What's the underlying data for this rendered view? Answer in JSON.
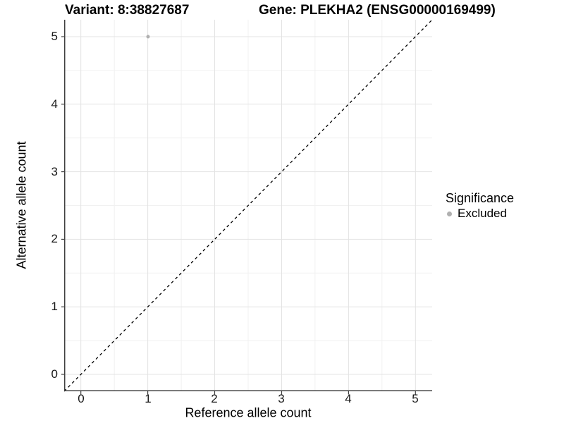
{
  "figure": {
    "title_left": "Variant: 8:38827687",
    "title_right": "Gene: PLEKHA2 (ENSG00000169499)"
  },
  "axes": {
    "x": {
      "label": "Reference allele count",
      "ticks": [
        "0",
        "1",
        "2",
        "3",
        "4",
        "5"
      ]
    },
    "y": {
      "label": "Alternative allele count",
      "ticks": [
        "0",
        "1",
        "2",
        "3",
        "4",
        "5"
      ]
    }
  },
  "legend": {
    "title": "Significance",
    "items": [
      {
        "label": "Excluded",
        "marker": "circle-icon",
        "color": "#b0b0b0"
      }
    ]
  },
  "colors": {
    "background": "#ffffff",
    "grid_major": "#e3e3e3",
    "grid_minor": "#f1f1f1",
    "axis_line": "#404040",
    "text": "#000000",
    "point": "#b0b0b0",
    "reference_line": "#000000"
  },
  "chart_data": {
    "type": "scatter",
    "title": "Variant: 8:38827687    Gene: PLEKHA2 (ENSG00000169499)",
    "xlabel": "Reference allele count",
    "ylabel": "Alternative allele count",
    "xlim": [
      -0.25,
      5.25
    ],
    "ylim": [
      -0.25,
      5.25
    ],
    "x_ticks": [
      0,
      1,
      2,
      3,
      4,
      5
    ],
    "y_ticks": [
      0,
      1,
      2,
      3,
      4,
      5
    ],
    "grid": "major at integers, minor at half-integers, light gray on white",
    "legend_position": "right",
    "legend_title": "Significance",
    "series": [
      {
        "name": "Excluded",
        "color": "#b0b0b0",
        "points": [
          [
            1,
            5
          ]
        ]
      }
    ],
    "annotations": [
      {
        "type": "abline",
        "slope": 1,
        "intercept": 0,
        "style": "dashed",
        "color": "#000000",
        "note": "identity line y = x spanning full panel"
      }
    ]
  }
}
